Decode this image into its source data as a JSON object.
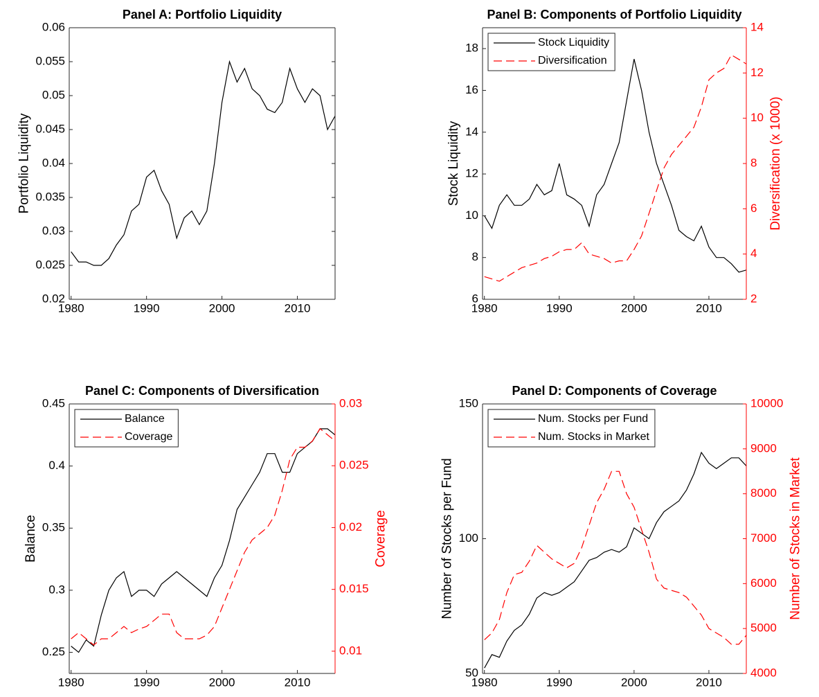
{
  "chart_data": [
    {
      "type": "line",
      "title": "Panel A: Portfolio Liquidity",
      "ylabel": "Portfolio Liquidity",
      "x": [
        1980,
        1981,
        1982,
        1983,
        1984,
        1985,
        1986,
        1987,
        1988,
        1989,
        1990,
        1991,
        1992,
        1993,
        1994,
        1995,
        1996,
        1997,
        1998,
        1999,
        2000,
        2001,
        2002,
        2003,
        2004,
        2005,
        2006,
        2007,
        2008,
        2009,
        2010,
        2011,
        2012,
        2013,
        2014,
        2015
      ],
      "values": [
        0.027,
        0.0255,
        0.0255,
        0.025,
        0.025,
        0.026,
        0.028,
        0.0295,
        0.033,
        0.034,
        0.038,
        0.039,
        0.036,
        0.034,
        0.029,
        0.032,
        0.033,
        0.031,
        0.033,
        0.04,
        0.049,
        0.055,
        0.052,
        0.054,
        0.051,
        0.05,
        0.048,
        0.0475,
        0.049,
        0.054,
        0.051,
        0.049,
        0.051,
        0.05,
        0.045,
        0.047
      ],
      "color": "#000000",
      "xlim": [
        1979.75,
        2015
      ],
      "xticks": [
        1980,
        1990,
        2000,
        2010
      ],
      "ylim": [
        0.02,
        0.06
      ],
      "yticks": [
        0.02,
        0.025,
        0.03,
        0.035,
        0.04,
        0.045,
        0.05,
        0.055,
        0.06
      ]
    },
    {
      "type": "line",
      "title": "Panel B: Components of Portfolio Liquidity",
      "ylabel": "Stock Liquidity",
      "y2label": "Diversification (x 1000)",
      "x": [
        1980,
        1981,
        1982,
        1983,
        1984,
        1985,
        1986,
        1987,
        1988,
        1989,
        1990,
        1991,
        1992,
        1993,
        1994,
        1995,
        1996,
        1997,
        1998,
        1999,
        2000,
        2001,
        2002,
        2003,
        2004,
        2005,
        2006,
        2007,
        2008,
        2009,
        2010,
        2011,
        2012,
        2013,
        2014,
        2015
      ],
      "series": [
        {
          "name": "Stock Liquidity",
          "color": "#000000",
          "style": "solid",
          "axis": "y",
          "values": [
            10,
            9.4,
            10.5,
            11,
            10.5,
            10.5,
            10.8,
            11.5,
            11,
            11.2,
            12.5,
            11,
            10.8,
            10.5,
            9.5,
            11,
            11.5,
            12.5,
            13.5,
            15.5,
            17.5,
            16,
            14,
            12.5,
            11.5,
            10.5,
            9.3,
            9,
            8.8,
            9.5,
            8.5,
            8,
            8,
            7.7,
            7.3,
            7.4
          ]
        },
        {
          "name": "Diversification",
          "color": "#ff0000",
          "style": "dashed",
          "axis": "y2",
          "values": [
            3,
            2.9,
            2.8,
            3,
            3.2,
            3.4,
            3.5,
            3.6,
            3.8,
            3.9,
            4.1,
            4.2,
            4.2,
            4.5,
            4,
            3.9,
            3.8,
            3.6,
            3.7,
            3.7,
            4.2,
            4.8,
            5.8,
            6.8,
            7.8,
            8.4,
            8.8,
            9.2,
            9.6,
            10.5,
            11.7,
            12,
            12.2,
            12.8,
            12.6,
            12.4
          ]
        }
      ],
      "legend": "upper left",
      "xlim": [
        1979.75,
        2015
      ],
      "xticks": [
        1980,
        1990,
        2000,
        2010
      ],
      "ylim": [
        6,
        19
      ],
      "yticks": [
        6,
        8,
        10,
        12,
        14,
        16,
        18
      ],
      "y2lim": [
        2,
        14
      ],
      "y2ticks": [
        2,
        4,
        6,
        8,
        10,
        12,
        14
      ]
    },
    {
      "type": "line",
      "title": "Panel C: Components of Diversification",
      "ylabel": "Balance",
      "y2label": "Coverage",
      "x": [
        1980,
        1981,
        1982,
        1983,
        1984,
        1985,
        1986,
        1987,
        1988,
        1989,
        1990,
        1991,
        1992,
        1993,
        1994,
        1995,
        1996,
        1997,
        1998,
        1999,
        2000,
        2001,
        2002,
        2003,
        2004,
        2005,
        2006,
        2007,
        2008,
        2009,
        2010,
        2011,
        2012,
        2013,
        2014,
        2015
      ],
      "series": [
        {
          "name": "Balance",
          "color": "#000000",
          "style": "solid",
          "axis": "y",
          "values": [
            0.255,
            0.25,
            0.26,
            0.255,
            0.28,
            0.3,
            0.31,
            0.315,
            0.295,
            0.3,
            0.3,
            0.295,
            0.305,
            0.31,
            0.315,
            0.31,
            0.305,
            0.3,
            0.295,
            0.31,
            0.32,
            0.34,
            0.365,
            0.375,
            0.385,
            0.395,
            0.41,
            0.41,
            0.395,
            0.395,
            0.41,
            0.415,
            0.42,
            0.43,
            0.43,
            0.425
          ]
        },
        {
          "name": "Coverage",
          "color": "#ff0000",
          "style": "dashed",
          "axis": "y2",
          "values": [
            0.011,
            0.0115,
            0.011,
            0.0105,
            0.011,
            0.011,
            0.0115,
            0.012,
            0.0115,
            0.0118,
            0.012,
            0.0125,
            0.013,
            0.013,
            0.0115,
            0.011,
            0.011,
            0.011,
            0.0113,
            0.012,
            0.0135,
            0.015,
            0.0165,
            0.018,
            0.019,
            0.0195,
            0.02,
            0.021,
            0.023,
            0.0255,
            0.0265,
            0.0265,
            0.027,
            0.028,
            0.0275,
            0.027
          ]
        }
      ],
      "legend": "upper left",
      "xlim": [
        1979.75,
        2015
      ],
      "xticks": [
        1980,
        1990,
        2000,
        2010
      ],
      "ylim": [
        0.233,
        0.45
      ],
      "yticks": [
        0.25,
        0.3,
        0.35,
        0.4,
        0.45
      ],
      "y2lim": [
        0.0082,
        0.03
      ],
      "y2ticks": [
        0.01,
        0.015,
        0.02,
        0.025,
        0.03
      ]
    },
    {
      "type": "line",
      "title": "Panel D: Components of Coverage",
      "ylabel": "Number of Stocks per Fund",
      "y2label": "Number of Stocks in Market",
      "x": [
        1980,
        1981,
        1982,
        1983,
        1984,
        1985,
        1986,
        1987,
        1988,
        1989,
        1990,
        1991,
        1992,
        1993,
        1994,
        1995,
        1996,
        1997,
        1998,
        1999,
        2000,
        2001,
        2002,
        2003,
        2004,
        2005,
        2006,
        2007,
        2008,
        2009,
        2010,
        2011,
        2012,
        2013,
        2014,
        2015
      ],
      "series": [
        {
          "name": "Num. Stocks per Fund",
          "color": "#000000",
          "style": "solid",
          "axis": "y",
          "values": [
            52,
            57,
            56,
            62,
            66,
            68,
            72,
            78,
            80,
            79,
            80,
            82,
            84,
            88,
            92,
            93,
            95,
            96,
            95,
            97,
            104,
            102,
            100,
            106,
            110,
            112,
            114,
            118,
            124,
            132,
            128,
            126,
            128,
            130,
            130,
            127
          ]
        },
        {
          "name": "Num. Stocks in Market",
          "color": "#ff0000",
          "style": "dashed",
          "axis": "y2",
          "values": [
            4750,
            4900,
            5200,
            5800,
            6200,
            6250,
            6500,
            6850,
            6700,
            6550,
            6450,
            6350,
            6450,
            6800,
            7300,
            7800,
            8100,
            8500,
            8500,
            8000,
            7700,
            7200,
            6700,
            6100,
            5900,
            5850,
            5800,
            5700,
            5500,
            5300,
            5000,
            4900,
            4800,
            4650,
            4650,
            4850
          ]
        }
      ],
      "legend": "upper left",
      "xlim": [
        1979.75,
        2015
      ],
      "xticks": [
        1980,
        1990,
        2000,
        2010
      ],
      "ylim": [
        50,
        150
      ],
      "yticks": [
        50,
        100,
        150
      ],
      "y2lim": [
        4000,
        10000
      ],
      "y2ticks": [
        4000,
        5000,
        6000,
        7000,
        8000,
        9000,
        10000
      ]
    }
  ]
}
